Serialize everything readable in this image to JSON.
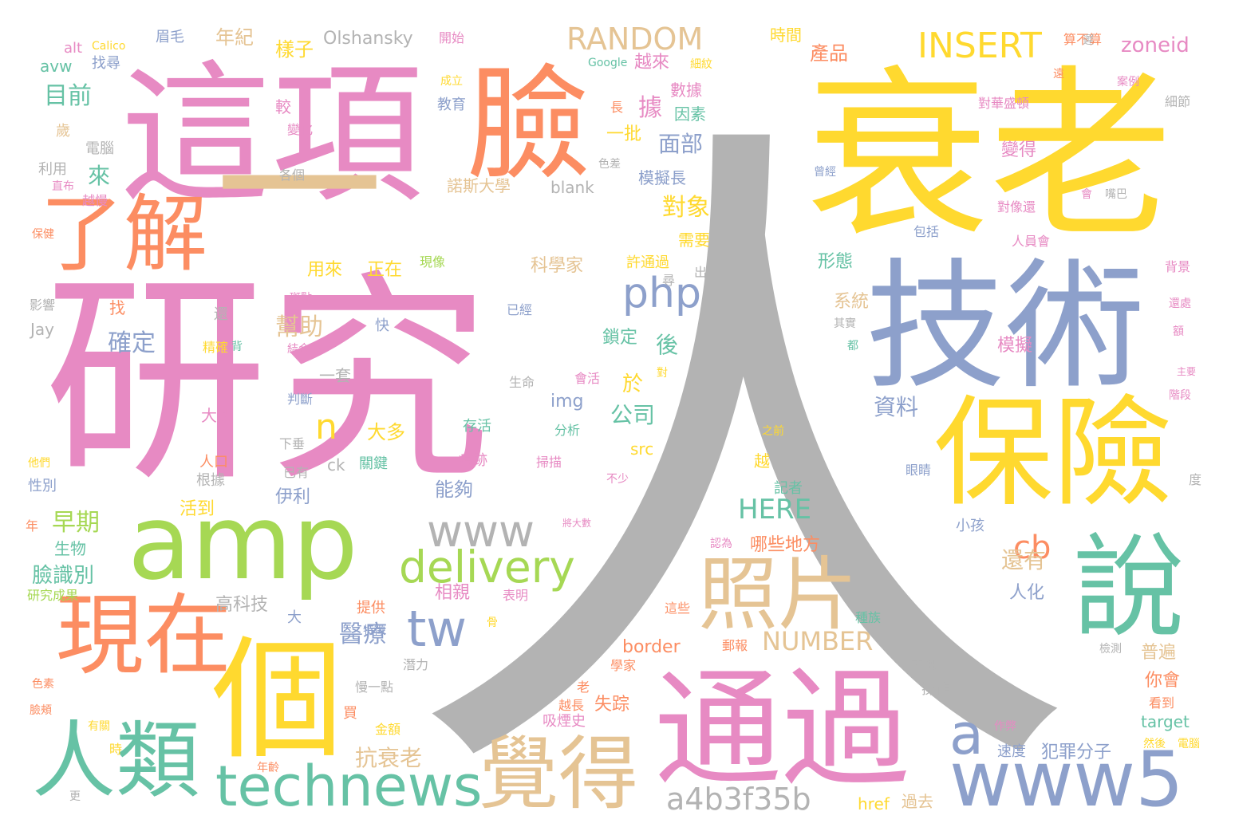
{
  "palette": {
    "gray": "#b3b3b3",
    "pink": "#e78ac3",
    "yellow": "#ffd92f",
    "orange": "#fc8d62",
    "green": "#66c2a5",
    "blue": "#8da0cb",
    "lime": "#a6d854",
    "tan": "#e5c494"
  },
  "words": [
    {
      "text": "人",
      "color": "gray"
    },
    {
      "text": "研究",
      "color": "pink"
    },
    {
      "text": "這項",
      "color": "pink"
    },
    {
      "text": "臉",
      "color": "orange"
    },
    {
      "text": "衰老",
      "color": "yellow"
    },
    {
      "text": "技術",
      "color": "blue"
    },
    {
      "text": "一",
      "color": "tan"
    },
    {
      "text": "amp",
      "color": "lime"
    },
    {
      "text": "保險",
      "color": "yellow"
    },
    {
      "text": "說",
      "color": "green"
    },
    {
      "text": "個",
      "color": "yellow"
    },
    {
      "text": "通過",
      "color": "pink"
    },
    {
      "text": "了解",
      "color": "orange"
    },
    {
      "text": "現在",
      "color": "orange"
    },
    {
      "text": "人類",
      "color": "green"
    },
    {
      "text": "照片",
      "color": "tan"
    },
    {
      "text": "覺得",
      "color": "tan"
    },
    {
      "text": "www5",
      "color": "blue"
    },
    {
      "text": "technews",
      "color": "green"
    },
    {
      "text": "www",
      "color": "gray"
    },
    {
      "text": "delivery",
      "color": "lime"
    },
    {
      "text": "INSERT",
      "color": "yellow"
    },
    {
      "text": "RANDOM",
      "color": "tan"
    },
    {
      "text": "a4b3f35b",
      "color": "gray"
    },
    {
      "text": "php",
      "color": "blue"
    },
    {
      "text": "tw",
      "color": "blue"
    },
    {
      "text": "a",
      "color": "blue"
    },
    {
      "text": "cb",
      "color": "orange"
    },
    {
      "text": "NUMBER",
      "color": "tan"
    },
    {
      "text": "HERE",
      "color": "green"
    },
    {
      "text": "n",
      "color": "yellow"
    },
    {
      "text": "zoneid",
      "color": "pink"
    },
    {
      "text": "目前",
      "color": "green"
    },
    {
      "text": "臉識別",
      "color": "green"
    },
    {
      "text": "早期",
      "color": "lime"
    },
    {
      "text": "醫療",
      "color": "blue"
    },
    {
      "text": "抗衰老",
      "color": "tan"
    },
    {
      "text": "面部",
      "color": "blue"
    },
    {
      "text": "對象",
      "color": "yellow"
    },
    {
      "text": "確定",
      "color": "blue"
    },
    {
      "text": "幫助",
      "color": "tan"
    },
    {
      "text": "資料",
      "color": "blue"
    },
    {
      "text": "公司",
      "color": "green"
    },
    {
      "text": "還有",
      "color": "tan"
    },
    {
      "text": "年紀",
      "color": "tan"
    },
    {
      "text": "樣子",
      "color": "yellow"
    },
    {
      "text": "Olshansky",
      "color": "gray"
    },
    {
      "text": "產品",
      "color": "orange"
    },
    {
      "text": "據",
      "color": "pink"
    },
    {
      "text": "來",
      "color": "green"
    },
    {
      "text": "用來",
      "color": "yellow"
    },
    {
      "text": "正在",
      "color": "yellow"
    },
    {
      "text": "科學家",
      "color": "tan"
    },
    {
      "text": "形態",
      "color": "green"
    },
    {
      "text": "系統",
      "color": "tan"
    },
    {
      "text": "模擬",
      "color": "pink"
    },
    {
      "text": "變得",
      "color": "pink"
    },
    {
      "text": "普遍",
      "color": "tan"
    },
    {
      "text": "你會",
      "color": "orange"
    },
    {
      "text": "哪些地方",
      "color": "orange"
    },
    {
      "text": "人化",
      "color": "blue"
    },
    {
      "text": "犯罪分子",
      "color": "blue"
    },
    {
      "text": "失踪",
      "color": "orange"
    },
    {
      "text": "相親",
      "color": "pink"
    },
    {
      "text": "大多",
      "color": "yellow"
    },
    {
      "text": "能夠",
      "color": "blue"
    },
    {
      "text": "伊利",
      "color": "blue"
    },
    {
      "text": "活到",
      "color": "yellow"
    },
    {
      "text": "鎖定",
      "color": "green"
    },
    {
      "text": "後",
      "color": "green"
    },
    {
      "text": "於",
      "color": "yellow"
    },
    {
      "text": "越來",
      "color": "pink"
    },
    {
      "text": "數據",
      "color": "pink"
    },
    {
      "text": "因素",
      "color": "green"
    },
    {
      "text": "模擬長",
      "color": "blue"
    },
    {
      "text": "一批",
      "color": "yellow"
    },
    {
      "text": "需要",
      "color": "yellow"
    },
    {
      "text": "blank",
      "color": "gray"
    },
    {
      "text": "諾斯大學",
      "color": "tan"
    },
    {
      "text": "教育",
      "color": "blue"
    },
    {
      "text": "較",
      "color": "pink"
    },
    {
      "text": "img",
      "color": "blue"
    },
    {
      "text": "src",
      "color": "yellow"
    },
    {
      "text": "ck",
      "color": "gray"
    },
    {
      "text": "高科技",
      "color": "gray"
    },
    {
      "text": "border",
      "color": "orange"
    },
    {
      "text": "target",
      "color": "green"
    },
    {
      "text": "href",
      "color": "yellow"
    },
    {
      "text": "過去",
      "color": "tan"
    },
    {
      "text": "速度",
      "color": "blue"
    },
    {
      "text": "avw",
      "color": "green"
    },
    {
      "text": "alt",
      "color": "pink"
    },
    {
      "text": "找尋",
      "color": "blue"
    },
    {
      "text": "利用",
      "color": "gray"
    },
    {
      "text": "電腦",
      "color": "gray"
    },
    {
      "text": "歲",
      "color": "tan"
    },
    {
      "text": "越慢",
      "color": "pink"
    },
    {
      "text": "找",
      "color": "orange"
    },
    {
      "text": "影響",
      "color": "gray"
    },
    {
      "text": "Jay",
      "color": "gray"
    },
    {
      "text": "大概",
      "color": "pink"
    },
    {
      "text": "人口",
      "color": "orange"
    },
    {
      "text": "根據",
      "color": "gray"
    },
    {
      "text": "性別",
      "color": "blue"
    },
    {
      "text": "生物",
      "color": "green"
    },
    {
      "text": "年",
      "color": "orange"
    },
    {
      "text": "研究成果",
      "color": "lime"
    },
    {
      "text": "眉毛",
      "color": "blue"
    },
    {
      "text": "開始",
      "color": "pink"
    },
    {
      "text": "時間",
      "color": "yellow"
    },
    {
      "text": "算不算",
      "color": "orange"
    },
    {
      "text": "細節",
      "color": "gray"
    },
    {
      "text": "對華盛頓",
      "color": "pink"
    },
    {
      "text": "對像還",
      "color": "pink"
    },
    {
      "text": "人員會",
      "color": "pink"
    },
    {
      "text": "包括",
      "color": "blue"
    },
    {
      "text": "背景",
      "color": "pink"
    },
    {
      "text": "眼睛",
      "color": "blue"
    },
    {
      "text": "小孩",
      "color": "blue"
    },
    {
      "text": "記者",
      "color": "green"
    },
    {
      "text": "越",
      "color": "yellow"
    },
    {
      "text": "一套",
      "color": "gray"
    },
    {
      "text": "判斷",
      "color": "blue"
    },
    {
      "text": "存活",
      "color": "green"
    },
    {
      "text": "分析",
      "color": "green"
    },
    {
      "text": "生命",
      "color": "gray"
    },
    {
      "text": "會活",
      "color": "pink"
    },
    {
      "text": "痕跡",
      "color": "pink"
    },
    {
      "text": "掃描",
      "color": "pink"
    },
    {
      "text": "關鍵",
      "color": "green"
    },
    {
      "text": "已有",
      "color": "gray"
    },
    {
      "text": "下垂",
      "color": "gray"
    },
    {
      "text": "金額",
      "color": "yellow"
    },
    {
      "text": "買",
      "color": "orange"
    },
    {
      "text": "提供",
      "color": "orange"
    },
    {
      "text": "表明",
      "color": "pink"
    },
    {
      "text": "種族",
      "color": "green"
    },
    {
      "text": "操作",
      "color": "gray"
    },
    {
      "text": "吸煙史",
      "color": "pink"
    },
    {
      "text": "學家",
      "color": "orange"
    },
    {
      "text": "年齡",
      "color": "orange"
    },
    {
      "text": "有關",
      "color": "yellow"
    },
    {
      "text": "色素",
      "color": "orange"
    },
    {
      "text": "臉頰",
      "color": "orange"
    },
    {
      "text": "更",
      "color": "gray"
    },
    {
      "text": "時",
      "color": "yellow"
    },
    {
      "text": "慢一點",
      "color": "gray"
    },
    {
      "text": "潛力",
      "color": "gray"
    },
    {
      "text": "大",
      "color": "blue"
    },
    {
      "text": "特徵",
      "color": "blue"
    },
    {
      "text": "這些",
      "color": "orange"
    },
    {
      "text": "郵報",
      "color": "orange"
    },
    {
      "text": "認為",
      "color": "pink"
    },
    {
      "text": "不過",
      "color": "gray"
    },
    {
      "text": "檢測",
      "color": "gray"
    },
    {
      "text": "看到",
      "color": "orange"
    },
    {
      "text": "然後",
      "color": "yellow"
    },
    {
      "text": "電腦",
      "color": "yellow"
    },
    {
      "text": "作弊",
      "color": "pink"
    },
    {
      "text": "Google",
      "color": "green"
    },
    {
      "text": "細紋",
      "color": "yellow"
    },
    {
      "text": "案例",
      "color": "pink"
    },
    {
      "text": "色差",
      "color": "gray"
    },
    {
      "text": "曾經",
      "color": "blue"
    },
    {
      "text": "嘴巴",
      "color": "gray"
    },
    {
      "text": "許通過",
      "color": "yellow"
    },
    {
      "text": "尋",
      "color": "gray"
    },
    {
      "text": "出",
      "color": "gray"
    },
    {
      "text": "還處",
      "color": "pink"
    },
    {
      "text": "額",
      "color": "pink"
    },
    {
      "text": "主要",
      "color": "pink"
    },
    {
      "text": "階段",
      "color": "pink"
    },
    {
      "text": "之前",
      "color": "yellow"
    },
    {
      "text": "度",
      "color": "gray"
    },
    {
      "text": "不少",
      "color": "pink"
    },
    {
      "text": "將大數",
      "color": "pink"
    },
    {
      "text": "已經",
      "color": "blue"
    },
    {
      "text": "快",
      "color": "blue"
    },
    {
      "text": "現像",
      "color": "lime"
    },
    {
      "text": "斑點",
      "color": "pink"
    },
    {
      "text": "結合來",
      "color": "pink"
    },
    {
      "text": "精確",
      "color": "yellow"
    },
    {
      "text": "還",
      "color": "gray"
    },
    {
      "text": "背",
      "color": "green"
    },
    {
      "text": "保健",
      "color": "orange"
    },
    {
      "text": "直布",
      "color": "pink"
    },
    {
      "text": "各個",
      "color": "gray"
    },
    {
      "text": "變化",
      "color": "pink"
    },
    {
      "text": "成立",
      "color": "yellow"
    },
    {
      "text": "長",
      "color": "orange"
    },
    {
      "text": "遲",
      "color": "gray"
    },
    {
      "text": "其實",
      "color": "gray"
    },
    {
      "text": "都",
      "color": "green"
    },
    {
      "text": "老",
      "color": "orange"
    },
    {
      "text": "越長",
      "color": "orange"
    },
    {
      "text": "對",
      "color": "yellow"
    },
    {
      "text": "骨",
      "color": "yellow"
    },
    {
      "text": "遠",
      "color": "orange"
    },
    {
      "text": "他們",
      "color": "yellow"
    },
    {
      "text": "會",
      "color": "pink"
    },
    {
      "text": "Calico",
      "color": "yellow"
    }
  ]
}
